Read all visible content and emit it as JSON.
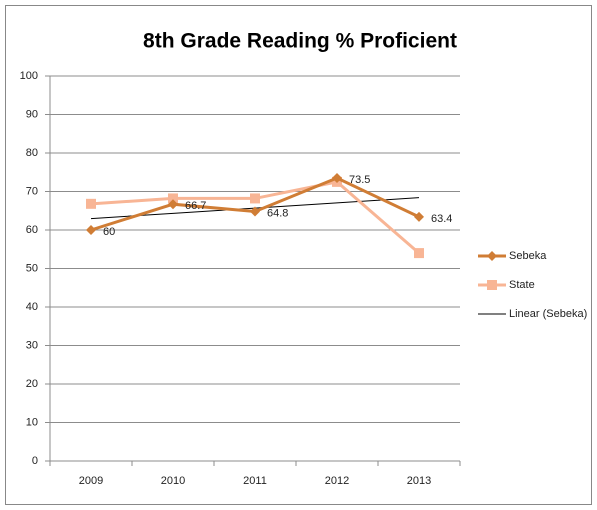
{
  "chart_data": {
    "type": "line",
    "title": "8th Grade Reading % Proficient",
    "categories": [
      "2009",
      "2010",
      "2011",
      "2012",
      "2013"
    ],
    "series": [
      {
        "name": "Sebeka",
        "color": "#d07d35",
        "marker": "diamond",
        "values": [
          60,
          66.7,
          64.8,
          73.5,
          63.4
        ],
        "data_labels": true
      },
      {
        "name": "State",
        "color": "#f8b595",
        "marker": "square",
        "values": [
          66.8,
          68.2,
          68.2,
          72.5,
          54
        ]
      },
      {
        "name": "Linear (Sebeka)",
        "color": "#000000",
        "marker": "none",
        "values": [
          62.96,
          64.32,
          65.68,
          67.04,
          68.4
        ]
      }
    ],
    "ylim": [
      0,
      100
    ],
    "yticks": [
      0,
      10,
      20,
      30,
      40,
      50,
      60,
      70,
      80,
      90,
      100
    ],
    "grid": true,
    "legend": "right"
  }
}
